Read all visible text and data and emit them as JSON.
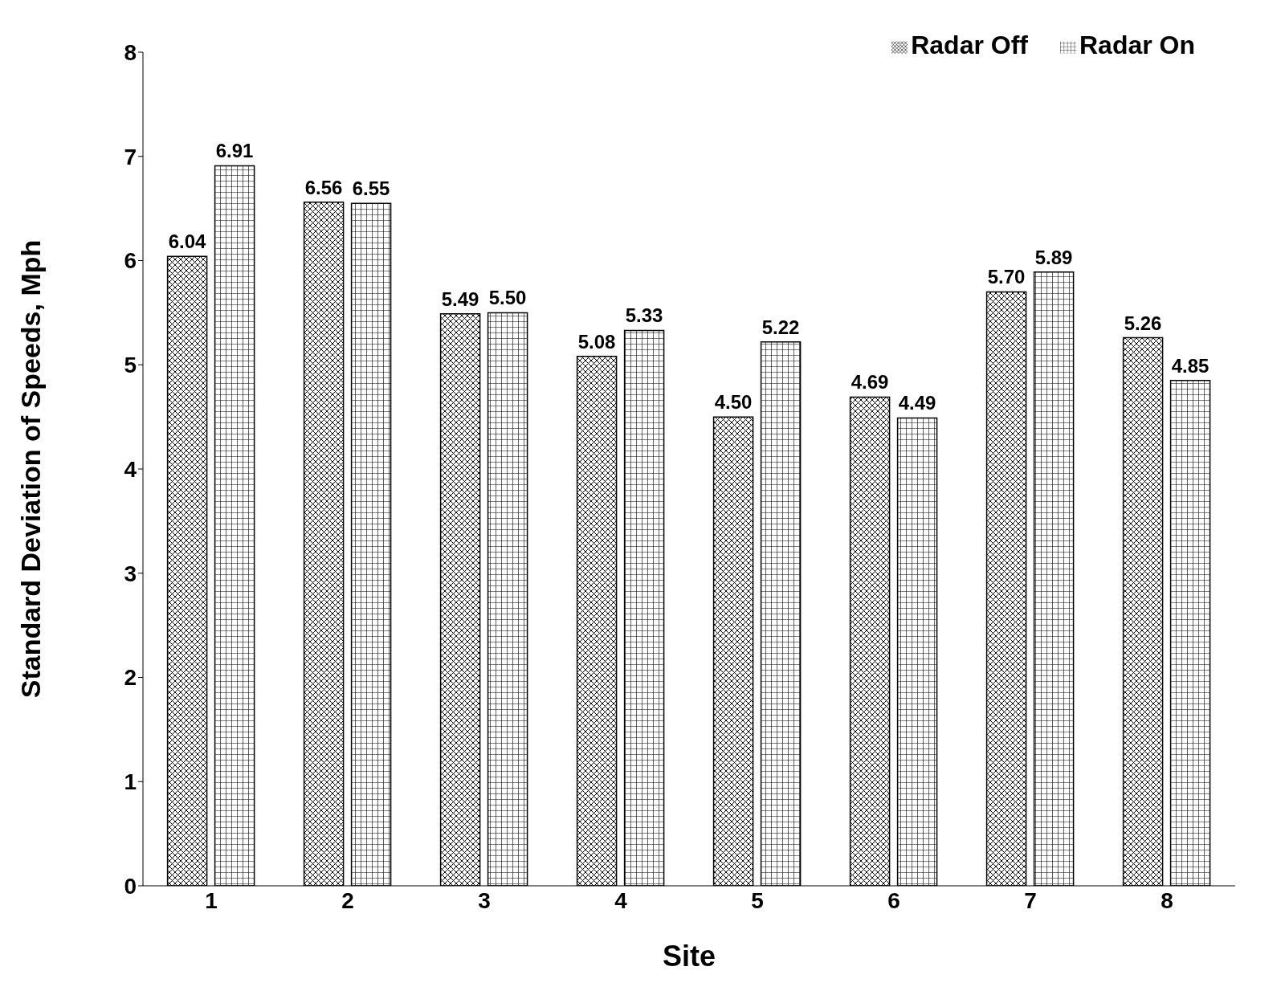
{
  "chart_data": {
    "type": "bar",
    "xlabel": "Site",
    "ylabel": "Standard Deviation of Speeds, Mph",
    "categories": [
      "1",
      "2",
      "3",
      "4",
      "5",
      "6",
      "7",
      "8"
    ],
    "series": [
      {
        "name": "Radar Off",
        "color": "#000000",
        "values": [
          6.04,
          6.56,
          5.49,
          5.08,
          4.5,
          4.69,
          5.7,
          5.26
        ],
        "value_labels": [
          "6.04",
          "6.56",
          "5.49",
          "5.08",
          "4.50",
          "4.69",
          "5.70",
          "5.26"
        ]
      },
      {
        "name": "Radar On",
        "color": "#000000",
        "values": [
          6.91,
          6.55,
          5.5,
          5.33,
          5.22,
          4.49,
          5.89,
          4.85
        ],
        "value_labels": [
          "6.91",
          "6.55",
          "5.50",
          "5.33",
          "5.22",
          "4.49",
          "5.89",
          "4.85"
        ]
      }
    ],
    "ylim": [
      0,
      8
    ],
    "yticks": [
      0,
      1,
      2,
      3,
      4,
      5,
      6,
      7,
      8
    ],
    "legend": "top right"
  }
}
